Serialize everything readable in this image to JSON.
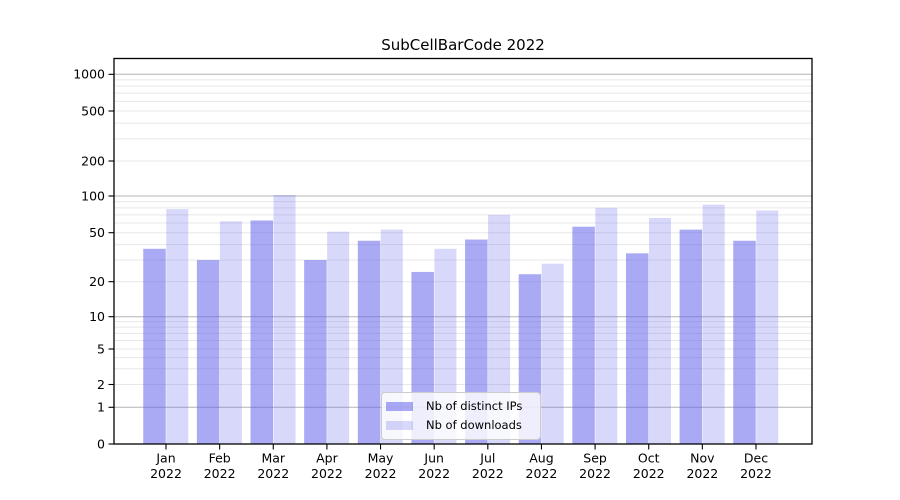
{
  "chart_data": {
    "type": "bar",
    "title": "SubCellBarCode 2022",
    "xlabel": "",
    "ylabel": "",
    "yscale": "symlog",
    "grid": true,
    "legend_position": "lower center",
    "categories": [
      "Jan 2022",
      "Feb 2022",
      "Mar 2022",
      "Apr 2022",
      "May 2022",
      "Jun 2022",
      "Jul 2022",
      "Aug 2022",
      "Sep 2022",
      "Oct 2022",
      "Nov 2022",
      "Dec 2022"
    ],
    "series": [
      {
        "name": "Nb of distinct IPs",
        "color": "rgba(100,100,235,0.55)",
        "solid_color": "#a9a9f4",
        "values": [
          37,
          30,
          63,
          30,
          43,
          24,
          44,
          23,
          56,
          34,
          53,
          43
        ]
      },
      {
        "name": "Nb of downloads",
        "color": "rgba(100,100,235,0.25)",
        "solid_color": "#d8d8f8",
        "values": [
          78,
          62,
          102,
          51,
          53,
          37,
          70,
          28,
          80,
          66,
          85,
          76
        ]
      }
    ],
    "yticks": [
      0,
      1,
      2,
      5,
      10,
      20,
      50,
      100,
      200,
      500,
      1000
    ],
    "major_gridline_values": [
      1,
      10,
      100,
      1000
    ],
    "ylim": [
      0,
      1350
    ]
  },
  "colors": {
    "bar_base": "#6464eb",
    "major_grid": "#b4b4b4",
    "minor_grid": "#e7e7e7",
    "spine": "#000000",
    "text": "#000000",
    "legend_border": "#cccccc"
  }
}
